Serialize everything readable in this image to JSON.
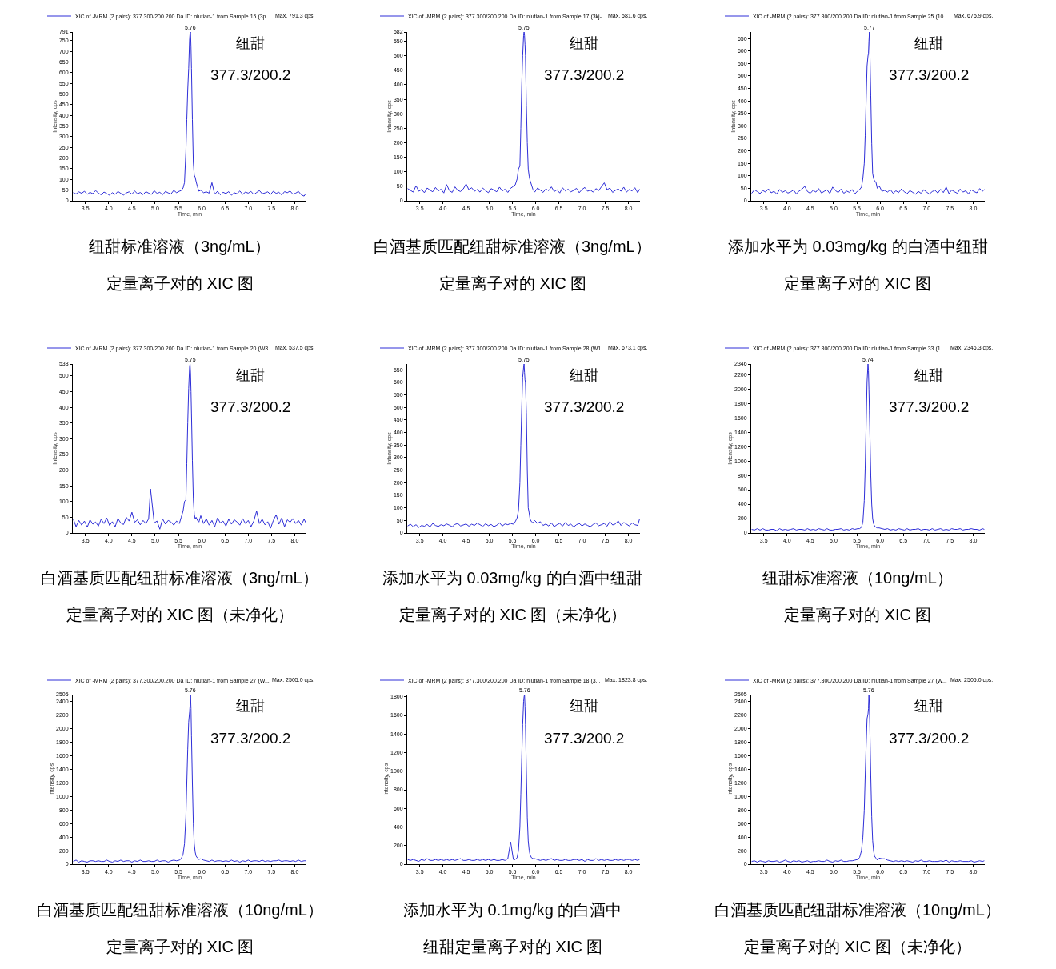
{
  "chart_data": [
    {
      "type": "line",
      "xlabel": "Time, min",
      "ylabel": "Intensity, cps",
      "legend": "top left",
      "xlim": [
        3.23,
        8.25
      ],
      "xticks": [
        3.5,
        {
          "value": 4,
          "label": "4.0"
        },
        4.5,
        {
          "value": 5,
          "label": "5.0"
        },
        5.5,
        {
          "value": 6,
          "label": "6.0"
        },
        6.5,
        {
          "value": 7,
          "label": "7.0"
        },
        7.5,
        {
          "value": 8,
          "label": "8.0"
        }
      ],
      "ylim": [
        0,
        791
      ],
      "yticks": [
        0,
        50,
        100,
        150,
        200,
        250,
        300,
        350,
        400,
        450,
        500,
        550,
        600,
        650,
        700,
        750,
        791
      ],
      "x": [
        3.24,
        3.3,
        3.36,
        3.42,
        3.48,
        3.54,
        3.6,
        3.66,
        3.72,
        3.78,
        3.84,
        3.9,
        3.96,
        4.02,
        4.08,
        4.14,
        4.2,
        4.26,
        4.32,
        4.38,
        4.44,
        4.5,
        4.56,
        4.62,
        4.68,
        4.74,
        4.8,
        4.86,
        4.92,
        4.98,
        5.04,
        5.1,
        5.16,
        5.22,
        5.28,
        5.34,
        5.4,
        5.46,
        5.52,
        5.56,
        5.6,
        5.63,
        5.66,
        5.68,
        5.7,
        5.72,
        5.74,
        5.75,
        5.76,
        5.77,
        5.78,
        5.8,
        5.82,
        5.84,
        5.86,
        5.88,
        5.91,
        5.94,
        5.98,
        6.04,
        6.1,
        6.16,
        6.22,
        6.28,
        6.34,
        6.4,
        6.46,
        6.52,
        6.58,
        6.64,
        6.7,
        6.76,
        6.82,
        6.88,
        6.94,
        7,
        7.06,
        7.12,
        7.18,
        7.24,
        7.3,
        7.36,
        7.42,
        7.48,
        7.54,
        7.6,
        7.66,
        7.72,
        7.78,
        7.84,
        7.9,
        7.96,
        8.02,
        8.08,
        8.14,
        8.2,
        8.24
      ],
      "series": [
        {
          "name": "XIC of -MRM (2 pairs): 377.300/200.200 Da ID: niutian-1 from Sample 15 (3p...",
          "color": "#2f2fd8",
          "values": [
            38,
            32,
            42,
            35,
            45,
            30,
            40,
            33,
            48,
            36,
            28,
            41,
            34,
            26,
            38,
            30,
            44,
            35,
            27,
            37,
            42,
            31,
            46,
            33,
            39,
            29,
            43,
            36,
            30,
            47,
            35,
            40,
            28,
            44,
            37,
            32,
            49,
            38,
            45,
            48,
            60,
            85,
            230,
            380,
            520,
            620,
            760,
            785,
            791,
            720,
            620,
            380,
            180,
            120,
            110,
            90,
            65,
            45,
            50,
            38,
            42,
            36,
            85,
            30,
            45,
            28,
            40,
            34,
            43,
            26,
            38,
            33,
            46,
            30,
            41,
            36,
            44,
            29,
            39,
            48,
            33,
            37,
            42,
            30,
            45,
            35,
            40,
            27,
            43,
            38,
            46,
            31,
            36,
            44,
            28,
            22,
            35
          ]
        }
      ],
      "annotations": [
        "Max. 791.3 cps.",
        "纽甜",
        "377.3/200.2",
        {
          "text": "5.76",
          "x": 5.76,
          "y": 791
        },
        "纽甜标准溶液（3ng/mL）",
        "定量离子对的 XIC 图"
      ]
    },
    {
      "type": "line",
      "xlabel": "Time, min",
      "ylabel": "Intensity, cps",
      "legend": "top left",
      "xlim": [
        3.23,
        8.25
      ],
      "xticks": [
        3.5,
        {
          "value": 4,
          "label": "4.0"
        },
        4.5,
        {
          "value": 5,
          "label": "5.0"
        },
        5.5,
        {
          "value": 6,
          "label": "6.0"
        },
        6.5,
        {
          "value": 7,
          "label": "7.0"
        },
        7.5,
        {
          "value": 8,
          "label": "8.0"
        }
      ],
      "ylim": [
        0,
        582
      ],
      "yticks": [
        0,
        50,
        100,
        150,
        200,
        250,
        300,
        350,
        400,
        450,
        500,
        550,
        582
      ],
      "x": [
        3.24,
        3.3,
        3.36,
        3.42,
        3.48,
        3.54,
        3.6,
        3.66,
        3.72,
        3.78,
        3.84,
        3.9,
        3.96,
        4.02,
        4.08,
        4.14,
        4.2,
        4.26,
        4.32,
        4.38,
        4.44,
        4.5,
        4.56,
        4.62,
        4.68,
        4.74,
        4.8,
        4.86,
        4.92,
        4.98,
        5.04,
        5.1,
        5.16,
        5.22,
        5.28,
        5.34,
        5.4,
        5.46,
        5.52,
        5.56,
        5.6,
        5.63,
        5.66,
        5.68,
        5.7,
        5.72,
        5.74,
        5.75,
        5.76,
        5.77,
        5.78,
        5.8,
        5.82,
        5.84,
        5.86,
        5.88,
        5.91,
        5.94,
        5.98,
        6.04,
        6.1,
        6.16,
        6.22,
        6.28,
        6.34,
        6.4,
        6.46,
        6.52,
        6.58,
        6.64,
        6.7,
        6.76,
        6.82,
        6.88,
        6.94,
        7,
        7.06,
        7.12,
        7.18,
        7.24,
        7.3,
        7.36,
        7.42,
        7.48,
        7.54,
        7.6,
        7.66,
        7.72,
        7.78,
        7.84,
        7.9,
        7.96,
        8.02,
        8.08,
        8.14,
        8.2,
        8.24
      ],
      "series": [
        {
          "name": "XIC of -MRM (2 pairs): 377.300/200.200 Da ID: niutian-1 from Sample 17 (3kj-...",
          "color": "#2f2fd8",
          "values": [
            42,
            36,
            30,
            52,
            33,
            39,
            28,
            44,
            37,
            31,
            46,
            34,
            40,
            27,
            56,
            35,
            29,
            48,
            36,
            32,
            41,
            58,
            38,
            45,
            33,
            39,
            30,
            44,
            35,
            28,
            42,
            37,
            31,
            47,
            34,
            40,
            29,
            43,
            50,
            55,
            75,
            110,
            120,
            250,
            400,
            500,
            570,
            582,
            570,
            540,
            500,
            330,
            200,
            110,
            85,
            70,
            55,
            40,
            30,
            44,
            37,
            29,
            41,
            35,
            48,
            32,
            38,
            27,
            45,
            34,
            40,
            31,
            36,
            43,
            28,
            39,
            46,
            33,
            37,
            30,
            42,
            35,
            49,
            62,
            38,
            44,
            29,
            36,
            41,
            33,
            47,
            30,
            39,
            34,
            45,
            28,
            40
          ]
        }
      ],
      "annotations": [
        "Max. 581.6 cps.",
        "纽甜",
        "377.3/200.2",
        {
          "text": "5.75",
          "x": 5.75,
          "y": 582
        },
        "白酒基质匹配纽甜标准溶液（3ng/mL）",
        "定量离子对的 XIC 图"
      ]
    },
    {
      "type": "line",
      "xlabel": "Time, min",
      "ylabel": "Intensity, cps",
      "legend": "top left",
      "xlim": [
        3.23,
        8.25
      ],
      "xticks": [
        3.5,
        {
          "value": 4,
          "label": "4.0"
        },
        4.5,
        {
          "value": 5,
          "label": "5.0"
        },
        5.5,
        {
          "value": 6,
          "label": "6.0"
        },
        6.5,
        {
          "value": 7,
          "label": "7.0"
        },
        7.5,
        {
          "value": 8,
          "label": "8.0"
        }
      ],
      "ylim": [
        0,
        676
      ],
      "yticks": [
        0,
        50,
        100,
        150,
        200,
        250,
        300,
        350,
        400,
        450,
        500,
        550,
        600,
        650
      ],
      "x": [
        3.24,
        3.3,
        3.36,
        3.42,
        3.48,
        3.54,
        3.6,
        3.66,
        3.72,
        3.78,
        3.84,
        3.9,
        3.96,
        4.02,
        4.08,
        4.14,
        4.2,
        4.26,
        4.32,
        4.38,
        4.44,
        4.5,
        4.56,
        4.62,
        4.68,
        4.74,
        4.8,
        4.86,
        4.92,
        4.98,
        5.04,
        5.1,
        5.16,
        5.22,
        5.28,
        5.34,
        5.4,
        5.46,
        5.52,
        5.56,
        5.6,
        5.63,
        5.66,
        5.68,
        5.7,
        5.72,
        5.74,
        5.75,
        5.76,
        5.77,
        5.78,
        5.8,
        5.82,
        5.84,
        5.86,
        5.88,
        5.91,
        5.94,
        5.98,
        6.04,
        6.1,
        6.16,
        6.22,
        6.28,
        6.34,
        6.4,
        6.46,
        6.52,
        6.58,
        6.64,
        6.7,
        6.76,
        6.82,
        6.88,
        6.94,
        7,
        7.06,
        7.12,
        7.18,
        7.24,
        7.3,
        7.36,
        7.42,
        7.48,
        7.54,
        7.6,
        7.66,
        7.72,
        7.78,
        7.84,
        7.9,
        7.96,
        8.02,
        8.08,
        8.14,
        8.2,
        8.24
      ],
      "series": [
        {
          "name": "XIC of -MRM (2 pairs): 377.300/200.200 Da ID: niutian-1 from Sample 25 (10...",
          "color": "#2f2fd8",
          "values": [
            30,
            44,
            37,
            29,
            41,
            35,
            48,
            32,
            38,
            27,
            45,
            34,
            40,
            31,
            36,
            43,
            28,
            39,
            46,
            58,
            37,
            30,
            42,
            35,
            49,
            31,
            38,
            44,
            29,
            55,
            41,
            33,
            47,
            30,
            39,
            34,
            45,
            28,
            40,
            45,
            55,
            90,
            150,
            260,
            400,
            540,
            580,
            590,
            640,
            676,
            600,
            420,
            230,
            110,
            90,
            80,
            75,
            50,
            60,
            38,
            42,
            35,
            45,
            30,
            40,
            33,
            48,
            36,
            28,
            41,
            34,
            26,
            38,
            30,
            44,
            35,
            27,
            37,
            42,
            31,
            46,
            33,
            55,
            29,
            43,
            36,
            30,
            47,
            35,
            40,
            28,
            44,
            37,
            32,
            49,
            38,
            45
          ]
        }
      ],
      "annotations": [
        "Max. 675.9 cps.",
        "纽甜",
        "377.3/200.2",
        {
          "text": "5.77",
          "x": 5.77,
          "y": 676
        },
        "添加水平为 0.03mg/kg 的白酒中纽甜",
        "定量离子对的 XIC 图"
      ]
    },
    {
      "type": "line",
      "xlabel": "Time, min",
      "ylabel": "Intensity, cps",
      "legend": "top left",
      "xlim": [
        3.23,
        8.25
      ],
      "xticks": [
        3.5,
        {
          "value": 4,
          "label": "4.0"
        },
        4.5,
        {
          "value": 5,
          "label": "5.0"
        },
        5.5,
        {
          "value": 6,
          "label": "6.0"
        },
        6.5,
        {
          "value": 7,
          "label": "7.0"
        },
        7.5,
        {
          "value": 8,
          "label": "8.0"
        }
      ],
      "ylim": [
        0,
        538
      ],
      "yticks": [
        0,
        50,
        100,
        150,
        200,
        250,
        300,
        350,
        400,
        450,
        500,
        538
      ],
      "x": [
        3.24,
        3.3,
        3.36,
        3.42,
        3.48,
        3.54,
        3.6,
        3.66,
        3.72,
        3.78,
        3.84,
        3.9,
        3.96,
        4.02,
        4.08,
        4.14,
        4.2,
        4.26,
        4.32,
        4.38,
        4.44,
        4.5,
        4.56,
        4.62,
        4.68,
        4.74,
        4.8,
        4.86,
        4.9,
        4.98,
        5.04,
        5.1,
        5.16,
        5.22,
        5.28,
        5.34,
        5.4,
        5.46,
        5.52,
        5.56,
        5.6,
        5.63,
        5.66,
        5.68,
        5.7,
        5.72,
        5.74,
        5.75,
        5.76,
        5.77,
        5.78,
        5.8,
        5.82,
        5.84,
        5.86,
        5.88,
        5.91,
        5.94,
        5.98,
        6.04,
        6.1,
        6.16,
        6.22,
        6.28,
        6.34,
        6.4,
        6.46,
        6.52,
        6.58,
        6.64,
        6.7,
        6.76,
        6.82,
        6.88,
        6.94,
        7,
        7.06,
        7.12,
        7.18,
        7.24,
        7.3,
        7.36,
        7.42,
        7.48,
        7.54,
        7.6,
        7.66,
        7.72,
        7.78,
        7.84,
        7.9,
        7.96,
        8.02,
        8.08,
        8.14,
        8.2,
        8.24
      ],
      "series": [
        {
          "name": "XIC of -MRM (2 pairs): 377.300/200.200 Da ID: niutian-1 from Sample 20 (W3...",
          "color": "#2f2fd8",
          "values": [
            45,
            20,
            40,
            25,
            38,
            18,
            42,
            28,
            35,
            22,
            44,
            30,
            48,
            24,
            36,
            20,
            46,
            32,
            27,
            50,
            38,
            66,
            34,
            42,
            26,
            40,
            30,
            45,
            140,
            32,
            38,
            12,
            45,
            28,
            40,
            35,
            25,
            38,
            30,
            50,
            70,
            100,
            105,
            220,
            350,
            460,
            530,
            538,
            510,
            450,
            380,
            230,
            110,
            60,
            45,
            50,
            40,
            35,
            55,
            30,
            45,
            25,
            40,
            20,
            48,
            32,
            38,
            22,
            44,
            28,
            42,
            35,
            25,
            46,
            30,
            40,
            20,
            38,
            70,
            30,
            44,
            26,
            36,
            15,
            40,
            58,
            28,
            48,
            20,
            42,
            34,
            46,
            30,
            40,
            25,
            44,
            32
          ]
        }
      ],
      "annotations": [
        "Max. 537.5 cps.",
        "纽甜",
        "377.3/200.2",
        {
          "text": "5.75",
          "x": 5.75,
          "y": 538
        },
        "白酒基质匹配纽甜标准溶液（3ng/mL）",
        "定量离子对的 XIC 图（未净化）"
      ]
    },
    {
      "type": "line",
      "xlabel": "Time, min",
      "ylabel": "Intensity, cps",
      "legend": "top left",
      "xlim": [
        3.23,
        8.25
      ],
      "xticks": [
        3.5,
        {
          "value": 4,
          "label": "4.0"
        },
        4.5,
        {
          "value": 5,
          "label": "5.0"
        },
        5.5,
        {
          "value": 6,
          "label": "6.0"
        },
        6.5,
        {
          "value": 7,
          "label": "7.0"
        },
        7.5,
        {
          "value": 8,
          "label": "8.0"
        }
      ],
      "ylim": [
        0,
        673
      ],
      "yticks": [
        0,
        50,
        100,
        150,
        200,
        250,
        300,
        350,
        400,
        450,
        500,
        550,
        600,
        650
      ],
      "x": [
        3.24,
        3.3,
        3.36,
        3.42,
        3.48,
        3.54,
        3.6,
        3.66,
        3.72,
        3.78,
        3.84,
        3.9,
        3.96,
        4.02,
        4.08,
        4.14,
        4.2,
        4.26,
        4.32,
        4.38,
        4.44,
        4.5,
        4.56,
        4.62,
        4.68,
        4.74,
        4.8,
        4.86,
        4.92,
        4.98,
        5.04,
        5.1,
        5.16,
        5.22,
        5.28,
        5.34,
        5.4,
        5.46,
        5.52,
        5.56,
        5.6,
        5.63,
        5.66,
        5.68,
        5.7,
        5.72,
        5.74,
        5.75,
        5.76,
        5.77,
        5.78,
        5.8,
        5.82,
        5.84,
        5.86,
        5.88,
        5.91,
        5.94,
        5.98,
        6.04,
        6.1,
        6.16,
        6.22,
        6.28,
        6.34,
        6.4,
        6.46,
        6.52,
        6.58,
        6.64,
        6.7,
        6.76,
        6.82,
        6.88,
        6.94,
        7,
        7.06,
        7.12,
        7.18,
        7.24,
        7.3,
        7.36,
        7.42,
        7.48,
        7.54,
        7.6,
        7.66,
        7.72,
        7.78,
        7.84,
        7.9,
        7.96,
        8.02,
        8.08,
        8.14,
        8.2,
        8.24
      ],
      "series": [
        {
          "name": "XIC of -MRM (2 pairs): 377.300/200.200 Da ID: niutian-1 from Sample 28 (W1...",
          "color": "#2f2fd8",
          "values": [
            28,
            35,
            25,
            33,
            22,
            30,
            27,
            34,
            24,
            38,
            30,
            26,
            33,
            29,
            36,
            31,
            25,
            34,
            38,
            28,
            32,
            36,
            27,
            35,
            30,
            39,
            33,
            26,
            37,
            29,
            34,
            25,
            31,
            40,
            28,
            36,
            33,
            38,
            35,
            45,
            60,
            90,
            200,
            350,
            500,
            620,
            660,
            673,
            640,
            610,
            600,
            480,
            250,
            100,
            80,
            55,
            45,
            40,
            50,
            38,
            45,
            30,
            36,
            28,
            40,
            25,
            33,
            38,
            27,
            42,
            30,
            35,
            24,
            33,
            38,
            28,
            36,
            30,
            25,
            34,
            40,
            29,
            33,
            38,
            27,
            45,
            32,
            36,
            48,
            30,
            42,
            35,
            28,
            40,
            33,
            30,
            55
          ]
        }
      ],
      "annotations": [
        "Max. 673.1 cps.",
        "纽甜",
        "377.3/200.2",
        {
          "text": "5.75",
          "x": 5.75,
          "y": 673
        },
        "添加水平为 0.03mg/kg 的白酒中纽甜",
        "定量离子对的 XIC 图（未净化）"
      ]
    },
    {
      "type": "line",
      "xlabel": "Time, min",
      "ylabel": "Intensity, cps",
      "legend": "top left",
      "xlim": [
        3.23,
        8.25
      ],
      "xticks": [
        3.5,
        {
          "value": 4,
          "label": "4.0"
        },
        4.5,
        {
          "value": 5,
          "label": "5.0"
        },
        5.5,
        {
          "value": 6,
          "label": "6.0"
        },
        6.5,
        {
          "value": 7,
          "label": "7.0"
        },
        7.5,
        {
          "value": 8,
          "label": "8.0"
        }
      ],
      "ylim": [
        0,
        2346
      ],
      "yticks": [
        0,
        200,
        400,
        600,
        800,
        1000,
        1200,
        1400,
        1600,
        1800,
        2000,
        2200,
        2346
      ],
      "x": [
        3.24,
        3.3,
        3.36,
        3.42,
        3.48,
        3.54,
        3.6,
        3.66,
        3.72,
        3.78,
        3.84,
        3.9,
        3.96,
        4.02,
        4.08,
        4.14,
        4.2,
        4.26,
        4.32,
        4.38,
        4.44,
        4.5,
        4.56,
        4.62,
        4.68,
        4.74,
        4.8,
        4.86,
        4.92,
        4.98,
        5.04,
        5.1,
        5.16,
        5.22,
        5.28,
        5.34,
        5.4,
        5.46,
        5.52,
        5.56,
        5.6,
        5.63,
        5.66,
        5.68,
        5.7,
        5.72,
        5.74,
        5.75,
        5.76,
        5.77,
        5.78,
        5.8,
        5.82,
        5.84,
        5.86,
        5.88,
        5.91,
        5.94,
        5.98,
        6.04,
        6.1,
        6.16,
        6.22,
        6.28,
        6.34,
        6.4,
        6.46,
        6.52,
        6.58,
        6.64,
        6.7,
        6.76,
        6.82,
        6.88,
        6.94,
        7,
        7.06,
        7.12,
        7.18,
        7.24,
        7.3,
        7.36,
        7.42,
        7.48,
        7.54,
        7.6,
        7.66,
        7.72,
        7.78,
        7.84,
        7.9,
        7.96,
        8.02,
        8.08,
        8.14,
        8.2,
        8.24
      ],
      "series": [
        {
          "name": "XIC of -MRM (2 pairs): 377.300/200.200 Da ID: niutian-1 from Sample 33 (1...",
          "color": "#2f2fd8",
          "values": [
            50,
            40,
            60,
            40,
            60,
            40,
            40,
            50,
            50,
            30,
            60,
            40,
            50,
            40,
            50,
            60,
            40,
            50,
            50,
            40,
            60,
            40,
            50,
            40,
            60,
            50,
            40,
            60,
            40,
            40,
            50,
            50,
            60,
            40,
            50,
            40,
            60,
            50,
            60,
            60,
            80,
            150,
            450,
            900,
            1500,
            2100,
            2346,
            2250,
            2000,
            1700,
            1400,
            800,
            400,
            200,
            130,
            100,
            80,
            70,
            70,
            60,
            50,
            60,
            40,
            50,
            40,
            60,
            50,
            40,
            60,
            40,
            50,
            50,
            60,
            40,
            50,
            50,
            40,
            60,
            40,
            50,
            60,
            40,
            50,
            40,
            60,
            50,
            50,
            60,
            40,
            50,
            50,
            60,
            50,
            50,
            40,
            60,
            50
          ]
        }
      ],
      "annotations": [
        "Max. 2346.3 cps.",
        "纽甜",
        "377.3/200.2",
        {
          "text": "5.74",
          "x": 5.74,
          "y": 2346
        },
        "纽甜标准溶液（10ng/mL）",
        "定量离子对的 XIC 图"
      ]
    },
    {
      "type": "line",
      "xlabel": "Time, min",
      "ylabel": "Intensity, cps",
      "legend": "top left",
      "xlim": [
        3.23,
        8.25
      ],
      "xticks": [
        3.5,
        {
          "value": 4,
          "label": "4.0"
        },
        4.5,
        {
          "value": 5,
          "label": "5.0"
        },
        5.5,
        {
          "value": 6,
          "label": "6.0"
        },
        6.5,
        {
          "value": 7,
          "label": "7.0"
        },
        7.5,
        {
          "value": 8,
          "label": "8.0"
        }
      ],
      "ylim": [
        0,
        2505
      ],
      "yticks": [
        0,
        200,
        400,
        600,
        800,
        1000,
        1200,
        1400,
        1600,
        1800,
        2000,
        2200,
        2400,
        2505
      ],
      "x": [
        3.24,
        3.3,
        3.36,
        3.42,
        3.48,
        3.54,
        3.6,
        3.66,
        3.72,
        3.78,
        3.84,
        3.9,
        3.96,
        4.02,
        4.08,
        4.14,
        4.2,
        4.26,
        4.32,
        4.38,
        4.44,
        4.5,
        4.56,
        4.62,
        4.68,
        4.74,
        4.8,
        4.86,
        4.92,
        4.98,
        5.04,
        5.1,
        5.16,
        5.22,
        5.28,
        5.34,
        5.4,
        5.46,
        5.52,
        5.56,
        5.6,
        5.63,
        5.66,
        5.68,
        5.7,
        5.72,
        5.74,
        5.75,
        5.76,
        5.77,
        5.78,
        5.8,
        5.82,
        5.84,
        5.86,
        5.88,
        5.91,
        5.94,
        5.98,
        6.04,
        6.1,
        6.16,
        6.22,
        6.28,
        6.34,
        6.4,
        6.46,
        6.52,
        6.58,
        6.64,
        6.7,
        6.76,
        6.82,
        6.88,
        6.94,
        7,
        7.06,
        7.12,
        7.18,
        7.24,
        7.3,
        7.36,
        7.42,
        7.48,
        7.54,
        7.6,
        7.66,
        7.72,
        7.78,
        7.84,
        7.9,
        7.96,
        8.02,
        8.08,
        8.14,
        8.2,
        8.24
      ],
      "series": [
        {
          "name": "XIC of -MRM (2 pairs): 377.300/200.200 Da ID: niutian-1 from Sample 27 (W...",
          "color": "#2f2fd8",
          "values": [
            40,
            60,
            30,
            50,
            40,
            30,
            50,
            50,
            40,
            50,
            40,
            40,
            60,
            40,
            30,
            50,
            40,
            60,
            40,
            50,
            50,
            30,
            50,
            40,
            60,
            40,
            40,
            50,
            40,
            40,
            60,
            40,
            50,
            50,
            30,
            50,
            60,
            50,
            60,
            80,
            150,
            300,
            700,
            1200,
            1700,
            2100,
            2250,
            2350,
            2505,
            2300,
            1900,
            1200,
            600,
            300,
            180,
            120,
            90,
            70,
            80,
            60,
            50,
            40,
            60,
            40,
            50,
            50,
            40,
            50,
            40,
            60,
            40,
            50,
            30,
            50,
            40,
            60,
            40,
            50,
            50,
            40,
            60,
            40,
            50,
            40,
            50,
            50,
            60,
            40,
            50,
            50,
            40,
            50,
            40,
            60,
            40,
            50,
            50
          ]
        }
      ],
      "annotations": [
        "Max. 2505.0 cps.",
        "纽甜",
        "377.3/200.2",
        {
          "text": "5.76",
          "x": 5.76,
          "y": 2505
        },
        "白酒基质匹配纽甜标准溶液（10ng/mL）",
        "定量离子对的 XIC 图"
      ]
    },
    {
      "type": "line",
      "xlabel": "Time, min",
      "ylabel": "Intensity, cps",
      "legend": "top left",
      "xlim": [
        3.23,
        8.25
      ],
      "xticks": [
        3.5,
        {
          "value": 4,
          "label": "4.0"
        },
        4.5,
        {
          "value": 5,
          "label": "5.0"
        },
        5.5,
        {
          "value": 6,
          "label": "6.0"
        },
        6.5,
        {
          "value": 7,
          "label": "7.0"
        },
        7.5,
        {
          "value": 8,
          "label": "8.0"
        }
      ],
      "ylim": [
        0,
        1824
      ],
      "yticks": [
        0,
        200,
        400,
        600,
        800,
        1000,
        1200,
        1400,
        1600,
        1800
      ],
      "x": [
        3.24,
        3.3,
        3.36,
        3.42,
        3.48,
        3.54,
        3.6,
        3.66,
        3.72,
        3.78,
        3.84,
        3.9,
        3.96,
        4.02,
        4.08,
        4.14,
        4.2,
        4.26,
        4.32,
        4.38,
        4.44,
        4.5,
        4.56,
        4.62,
        4.68,
        4.74,
        4.8,
        4.86,
        4.92,
        4.98,
        5.04,
        5.1,
        5.16,
        5.22,
        5.28,
        5.34,
        5.4,
        5.46,
        5.52,
        5.56,
        5.6,
        5.63,
        5.66,
        5.68,
        5.7,
        5.72,
        5.74,
        5.75,
        5.76,
        5.77,
        5.78,
        5.8,
        5.82,
        5.84,
        5.86,
        5.88,
        5.91,
        5.94,
        5.98,
        6.04,
        6.1,
        6.16,
        6.22,
        6.28,
        6.34,
        6.4,
        6.46,
        6.52,
        6.58,
        6.64,
        6.7,
        6.76,
        6.82,
        6.88,
        6.94,
        7,
        7.06,
        7.12,
        7.18,
        7.24,
        7.3,
        7.36,
        7.42,
        7.48,
        7.54,
        7.6,
        7.66,
        7.72,
        7.78,
        7.84,
        7.9,
        7.96,
        8.02,
        8.08,
        8.14,
        8.2,
        8.24
      ],
      "series": [
        {
          "name": "XIC of -MRM (2 pairs): 377.300/200.200 Da ID: niutian-1 from Sample 18 (3...",
          "color": "#2f2fd8",
          "values": [
            50,
            40,
            50,
            40,
            30,
            50,
            40,
            60,
            40,
            40,
            50,
            40,
            50,
            40,
            50,
            40,
            50,
            40,
            50,
            60,
            40,
            40,
            50,
            40,
            40,
            50,
            40,
            50,
            40,
            50,
            40,
            50,
            40,
            40,
            50,
            40,
            60,
            240,
            50,
            50,
            70,
            150,
            400,
            750,
            1150,
            1500,
            1750,
            1800,
            1824,
            1700,
            1500,
            1000,
            500,
            250,
            150,
            100,
            70,
            60,
            60,
            50,
            40,
            50,
            40,
            50,
            60,
            40,
            50,
            40,
            40,
            50,
            40,
            40,
            50,
            50,
            40,
            50,
            30,
            50,
            40,
            40,
            60,
            40,
            50,
            40,
            50,
            40,
            40,
            50,
            40,
            50,
            40,
            50,
            50,
            40,
            50,
            40,
            50
          ]
        }
      ],
      "annotations": [
        "Max. 1823.8 cps.",
        "纽甜",
        "377.3/200.2",
        {
          "text": "5.76",
          "x": 5.76,
          "y": 1824
        },
        "添加水平为 0.1mg/kg 的白酒中",
        "纽甜定量离子对的 XIC 图"
      ]
    },
    {
      "type": "line",
      "xlabel": "Time, min",
      "ylabel": "Intensity, cps",
      "legend": "top left",
      "xlim": [
        3.23,
        8.25
      ],
      "xticks": [
        3.5,
        {
          "value": 4,
          "label": "4.0"
        },
        4.5,
        {
          "value": 5,
          "label": "5.0"
        },
        5.5,
        {
          "value": 6,
          "label": "6.0"
        },
        6.5,
        {
          "value": 7,
          "label": "7.0"
        },
        7.5,
        {
          "value": 8,
          "label": "8.0"
        }
      ],
      "ylim": [
        0,
        2505
      ],
      "yticks": [
        0,
        200,
        400,
        600,
        800,
        1000,
        1200,
        1400,
        1600,
        1800,
        2000,
        2200,
        2400,
        2505
      ],
      "x": [
        3.24,
        3.3,
        3.36,
        3.42,
        3.48,
        3.54,
        3.6,
        3.66,
        3.72,
        3.78,
        3.84,
        3.9,
        3.96,
        4.02,
        4.08,
        4.14,
        4.2,
        4.26,
        4.32,
        4.38,
        4.44,
        4.5,
        4.56,
        4.62,
        4.68,
        4.74,
        4.8,
        4.86,
        4.92,
        4.98,
        5.04,
        5.1,
        5.16,
        5.22,
        5.28,
        5.34,
        5.4,
        5.46,
        5.52,
        5.56,
        5.6,
        5.63,
        5.66,
        5.68,
        5.7,
        5.72,
        5.74,
        5.75,
        5.76,
        5.77,
        5.78,
        5.8,
        5.82,
        5.84,
        5.86,
        5.88,
        5.91,
        5.94,
        5.98,
        6.04,
        6.1,
        6.16,
        6.22,
        6.28,
        6.34,
        6.4,
        6.46,
        6.52,
        6.58,
        6.64,
        6.7,
        6.76,
        6.82,
        6.88,
        6.94,
        7,
        7.06,
        7.12,
        7.18,
        7.24,
        7.3,
        7.36,
        7.42,
        7.48,
        7.54,
        7.6,
        7.66,
        7.72,
        7.78,
        7.84,
        7.9,
        7.96,
        8.02,
        8.08,
        8.14,
        8.2,
        8.24
      ],
      "series": [
        {
          "name": "XIC of -MRM (2 pairs): 377.300/200.200 Da ID: niutian-1 from Sample 27 (W...",
          "color": "#2f2fd8",
          "values": [
            40,
            50,
            30,
            50,
            40,
            30,
            50,
            40,
            40,
            50,
            30,
            40,
            60,
            40,
            30,
            50,
            40,
            50,
            30,
            40,
            50,
            30,
            40,
            40,
            50,
            40,
            40,
            60,
            40,
            30,
            50,
            40,
            60,
            40,
            40,
            50,
            50,
            60,
            70,
            100,
            200,
            400,
            800,
            1300,
            1750,
            2150,
            2220,
            2300,
            2505,
            2350,
            2000,
            1300,
            700,
            350,
            200,
            120,
            90,
            60,
            90,
            80,
            80,
            60,
            50,
            40,
            50,
            40,
            50,
            40,
            50,
            40,
            30,
            50,
            40,
            60,
            40,
            40,
            50,
            40,
            40,
            40,
            50,
            40,
            60,
            30,
            50,
            40,
            40,
            50,
            40,
            40,
            40,
            50,
            30,
            40,
            50,
            40,
            50
          ]
        }
      ],
      "annotations": [
        "Max. 2505.0 cps.",
        "纽甜",
        "377.3/200.2",
        {
          "text": "5.76",
          "x": 5.76,
          "y": 2505
        },
        "白酒基质匹配纽甜标准溶液（10ng/mL）",
        "定量离子对的 XIC 图（未净化）"
      ]
    }
  ]
}
